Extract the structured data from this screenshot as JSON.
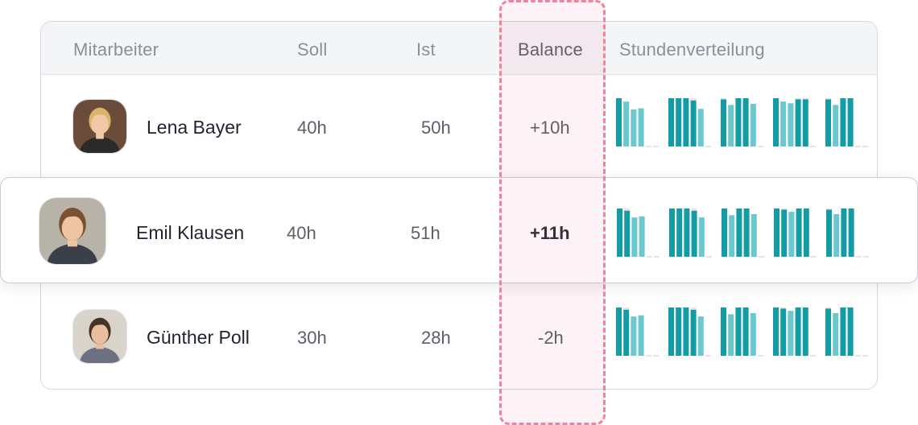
{
  "header": {
    "employee": "Mitarbeiter",
    "target": "Soll",
    "actual": "Ist",
    "balance": "Balance",
    "distribution": "Stundenverteilung"
  },
  "rows": [
    {
      "name": "Lena Bayer",
      "target": "40h",
      "actual": "50h",
      "balance": "+10h",
      "avatar": {
        "hair": "#d9b46a",
        "skin": "#f1c9a8",
        "bg": "#6b4b3a",
        "shirt": "#2a2a2a"
      },
      "hours": [
        [
          8.6,
          8,
          6.6,
          6.8,
          0,
          0
        ],
        [
          8.6,
          8.6,
          8.6,
          8.2,
          6.7,
          0
        ],
        [
          8.4,
          7.4,
          8.6,
          8.6,
          7.6,
          0
        ],
        [
          8.6,
          8,
          7.7,
          8.4,
          8.4,
          0
        ],
        [
          8.4,
          7.4,
          8.6,
          8.6,
          0,
          0
        ]
      ]
    },
    {
      "name": "Emil Klausen",
      "target": "40h",
      "actual": "51h",
      "balance": "+11h",
      "avatar": {
        "hair": "#7a5230",
        "skin": "#eec5a4",
        "bg": "#b8b3a8",
        "shirt": "#3a3f4a"
      },
      "hours": [
        [
          8.6,
          8.2,
          7,
          7.2,
          0,
          0
        ],
        [
          8.6,
          8.6,
          8.6,
          8.2,
          7,
          0
        ],
        [
          8.6,
          7.4,
          8.6,
          8.6,
          7.6,
          0
        ],
        [
          8.6,
          8.4,
          8,
          8.6,
          8.6,
          0
        ],
        [
          8.4,
          7.6,
          8.6,
          8.6,
          0,
          0
        ]
      ]
    },
    {
      "name": "Günther Poll",
      "target": "30h",
      "actual": "28h",
      "balance": "-2h",
      "avatar": {
        "hair": "#4a3324",
        "skin": "#e8bf9e",
        "bg": "#d8d4cc",
        "shirt": "#6d7080"
      },
      "hours": [
        [
          8.6,
          8.2,
          7,
          7.2,
          0,
          0
        ],
        [
          8.6,
          8.6,
          8.6,
          8.2,
          7,
          0
        ],
        [
          8.6,
          7.4,
          8.6,
          8.6,
          7.6,
          0
        ],
        [
          8.6,
          8.4,
          8,
          8.6,
          8.6,
          0
        ],
        [
          8.4,
          7.6,
          8.6,
          8.6,
          0,
          0
        ]
      ]
    }
  ],
  "colors": {
    "bar_dark": "#149ca6",
    "bar_light": "#6bc8cf",
    "bar_empty": "#e1e4e8",
    "overtime": "#f6dde4",
    "highlight_border": "#f0839c"
  }
}
